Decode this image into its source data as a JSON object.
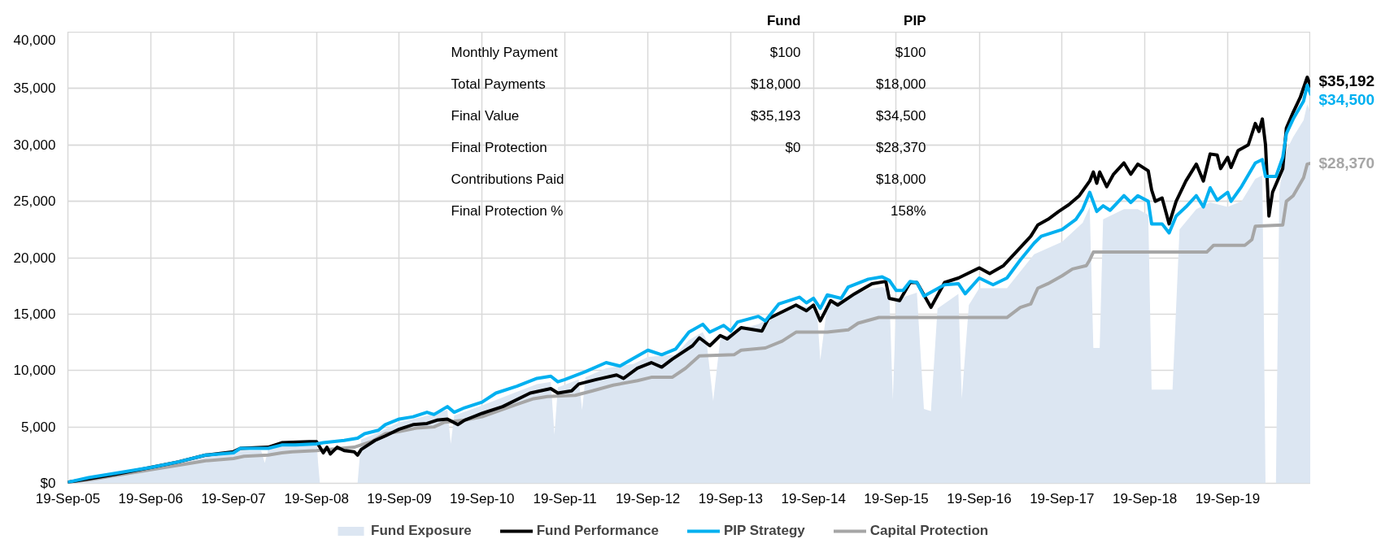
{
  "chart_data": {
    "type": "line",
    "xlim": [
      "2005-09-19",
      "2020-09-19"
    ],
    "xticks": [
      {
        "value": "2005-09-19",
        "label": "19-Sep-05"
      },
      {
        "value": "2006-09-19",
        "label": "19-Sep-06"
      },
      {
        "value": "2007-09-19",
        "label": "19-Sep-07"
      },
      {
        "value": "2008-09-19",
        "label": "19-Sep-08"
      },
      {
        "value": "2009-09-19",
        "label": "19-Sep-09"
      },
      {
        "value": "2010-09-19",
        "label": "19-Sep-10"
      },
      {
        "value": "2011-09-19",
        "label": "19-Sep-11"
      },
      {
        "value": "2012-09-19",
        "label": "19-Sep-12"
      },
      {
        "value": "2013-09-19",
        "label": "19-Sep-13"
      },
      {
        "value": "2014-09-19",
        "label": "19-Sep-14"
      },
      {
        "value": "2015-09-19",
        "label": "19-Sep-15"
      },
      {
        "value": "2016-09-19",
        "label": "19-Sep-16"
      },
      {
        "value": "2017-09-19",
        "label": "19-Sep-17"
      },
      {
        "value": "2018-09-19",
        "label": "19-Sep-18"
      },
      {
        "value": "2019-09-19",
        "label": "19-Sep-19"
      }
    ],
    "ylim": [
      0,
      40000
    ],
    "yticks": [
      {
        "value": 0,
        "label": "$0"
      },
      {
        "value": 5000,
        "label": "5,000"
      },
      {
        "value": 10000,
        "label": "10,000"
      },
      {
        "value": 15000,
        "label": "15,000"
      },
      {
        "value": 20000,
        "label": "20,000"
      },
      {
        "value": 25000,
        "label": "25,000"
      },
      {
        "value": 30000,
        "label": "30,000"
      },
      {
        "value": 35000,
        "label": "35,000"
      },
      {
        "value": 40000,
        "label": "40,000"
      }
    ],
    "grid": true,
    "legend": "bottom",
    "series": [
      {
        "name": "Fund Exposure",
        "type": "area",
        "color": "#dce6f2",
        "x": [
          "2005-09-19",
          "2005-12-19",
          "2006-04-19",
          "2006-09-19",
          "2007-01-19",
          "2007-05-19",
          "2007-09-19",
          "2007-10-19",
          "2008-01-19",
          "2008-02-04",
          "2008-02-19",
          "2008-04-19",
          "2008-09-19",
          "2008-10-04",
          "2009-03-19",
          "2009-04-04",
          "2009-06-19",
          "2009-09-19",
          "2010-01-19",
          "2010-04-19",
          "2010-05-04",
          "2010-05-19",
          "2010-09-19",
          "2011-02-19",
          "2011-05-19",
          "2011-07-19",
          "2011-08-04",
          "2011-08-19",
          "2011-11-19",
          "2011-12-04",
          "2011-12-19",
          "2012-03-19",
          "2012-07-19",
          "2012-09-19",
          "2013-01-19",
          "2013-03-19",
          "2013-05-19",
          "2013-06-04",
          "2013-07-04",
          "2013-08-04",
          "2013-10-19",
          "2014-01-19",
          "2014-04-19",
          "2014-07-19",
          "2014-10-04",
          "2014-10-19",
          "2014-11-19",
          "2015-02-19",
          "2015-05-19",
          "2015-07-19",
          "2015-08-19",
          "2015-09-04",
          "2015-09-19",
          "2015-12-19",
          "2016-01-19",
          "2016-02-19",
          "2016-03-19",
          "2016-06-19",
          "2016-07-04",
          "2016-08-04",
          "2016-09-19",
          "2017-01-19",
          "2017-05-19",
          "2017-09-19",
          "2017-12-19",
          "2018-01-19",
          "2018-02-04",
          "2018-03-04",
          "2018-03-19",
          "2018-06-19",
          "2018-08-19",
          "2018-10-04",
          "2018-10-19",
          "2019-01-19",
          "2019-02-19",
          "2019-05-04",
          "2019-07-04",
          "2019-09-19",
          "2019-11-19",
          "2020-01-19",
          "2020-02-19",
          "2020-03-04",
          "2020-04-19",
          "2020-05-04",
          "2020-06-04",
          "2020-07-04",
          "2020-08-19",
          "2020-09-04",
          "2020-09-19"
        ],
        "values": [
          100,
          400,
          800,
          1300,
          1800,
          2400,
          2600,
          2900,
          2900,
          1800,
          3000,
          3300,
          3400,
          0,
          0,
          3900,
          4500,
          5400,
          6000,
          6500,
          3500,
          6000,
          6900,
          8100,
          8800,
          9000,
          4300,
          8500,
          9200,
          6500,
          9400,
          10200,
          10600,
          11200,
          11400,
          12700,
          13400,
          12700,
          7300,
          12800,
          13600,
          14100,
          15100,
          15700,
          15600,
          10900,
          15800,
          16500,
          17200,
          17400,
          17100,
          7400,
          16300,
          16900,
          6600,
          6400,
          15500,
          16800,
          7500,
          15800,
          17300,
          17300,
          20300,
          21400,
          23100,
          24500,
          12000,
          12000,
          23400,
          24300,
          24300,
          23800,
          8300,
          8300,
          22500,
          24300,
          24900,
          24500,
          25000,
          27000,
          27300,
          0,
          0,
          26000,
          29500,
          30700,
          32200,
          33600,
          32800
        ]
      },
      {
        "name": "Fund Performance",
        "color": "#000000",
        "x": [
          "2005-09-19",
          "2005-12-19",
          "2006-04-19",
          "2006-09-19",
          "2007-01-19",
          "2007-05-19",
          "2007-09-19",
          "2007-10-19",
          "2008-02-19",
          "2008-04-19",
          "2008-08-19",
          "2008-09-19",
          "2008-10-19",
          "2008-11-04",
          "2008-11-19",
          "2008-12-19",
          "2009-01-19",
          "2009-03-04",
          "2009-03-19",
          "2009-04-04",
          "2009-06-04",
          "2009-07-19",
          "2009-09-19",
          "2009-11-19",
          "2010-01-19",
          "2010-03-04",
          "2010-04-19",
          "2010-06-04",
          "2010-07-04",
          "2010-09-19",
          "2010-12-19",
          "2011-04-19",
          "2011-07-19",
          "2011-08-19",
          "2011-10-19",
          "2011-11-19",
          "2012-02-04",
          "2012-05-04",
          "2012-06-04",
          "2012-08-04",
          "2012-10-04",
          "2012-11-19",
          "2013-01-04",
          "2013-04-04",
          "2013-05-04",
          "2013-06-19",
          "2013-08-04",
          "2013-09-04",
          "2013-11-04",
          "2014-02-04",
          "2014-03-04",
          "2014-07-04",
          "2014-08-19",
          "2014-09-19",
          "2014-10-19",
          "2014-12-04",
          "2015-01-04",
          "2015-03-19",
          "2015-06-04",
          "2015-08-04",
          "2015-08-19",
          "2015-10-04",
          "2015-11-19",
          "2015-12-19",
          "2016-02-19",
          "2016-04-19",
          "2016-06-19",
          "2016-09-19",
          "2016-11-04",
          "2017-01-04",
          "2017-02-19",
          "2017-05-04",
          "2017-06-04",
          "2017-07-19",
          "2017-09-04",
          "2017-10-19",
          "2017-12-04",
          "2018-01-19",
          "2018-02-04",
          "2018-02-19",
          "2018-03-04",
          "2018-04-04",
          "2018-05-04",
          "2018-06-19",
          "2018-07-19",
          "2018-08-19",
          "2018-10-04",
          "2018-10-19",
          "2018-11-04",
          "2018-12-04",
          "2019-01-04",
          "2019-02-04",
          "2019-03-19",
          "2019-05-04",
          "2019-06-04",
          "2019-07-04",
          "2019-08-04",
          "2019-08-19",
          "2019-09-19",
          "2019-10-04",
          "2019-11-04",
          "2019-12-19",
          "2020-01-19",
          "2020-02-04",
          "2020-02-19",
          "2020-03-04",
          "2020-03-19",
          "2020-04-04",
          "2020-05-19",
          "2020-06-04",
          "2020-07-04",
          "2020-08-04",
          "2020-09-04",
          "2020-09-19"
        ],
        "values": [
          100,
          400,
          800,
          1400,
          1900,
          2500,
          2800,
          3100,
          3200,
          3600,
          3700,
          3700,
          2700,
          3200,
          2600,
          3200,
          2900,
          2800,
          2500,
          3000,
          3800,
          4200,
          4800,
          5200,
          5300,
          5600,
          5700,
          5200,
          5600,
          6200,
          6800,
          8000,
          8400,
          8000,
          8200,
          8800,
          9200,
          9600,
          9300,
          10200,
          10700,
          10300,
          11000,
          12200,
          12900,
          12200,
          13100,
          12800,
          13800,
          13500,
          14600,
          15800,
          15300,
          15800,
          14400,
          16200,
          15800,
          16800,
          17700,
          17900,
          16400,
          16200,
          17800,
          17800,
          15600,
          17800,
          18200,
          19100,
          18600,
          19300,
          20300,
          21900,
          22900,
          23400,
          24100,
          24700,
          25500,
          26800,
          27600,
          26600,
          27600,
          26300,
          27400,
          28400,
          27400,
          28300,
          27700,
          26000,
          25000,
          25300,
          23000,
          25000,
          26800,
          28300,
          26800,
          29200,
          29100,
          27900,
          28900,
          28000,
          29500,
          30000,
          31900,
          31200,
          32300,
          30000,
          23700,
          25800,
          27900,
          31500,
          32900,
          34200,
          36000,
          35192
        ],
        "value_labels": [
          null,
          null,
          null,
          null,
          null,
          null,
          null,
          null,
          null,
          null,
          null,
          null,
          null,
          null,
          null,
          null,
          null,
          null,
          null,
          null,
          null,
          null,
          null,
          null,
          null,
          null,
          null,
          null,
          null,
          null,
          null,
          null,
          null,
          null,
          null,
          null,
          null,
          null,
          null,
          null,
          null,
          null,
          null,
          null,
          null,
          null,
          null,
          null,
          null,
          null,
          null,
          null,
          null,
          null,
          null,
          null,
          null,
          null,
          null,
          null,
          null,
          null,
          null,
          null,
          null,
          null,
          null,
          null,
          null,
          null,
          null,
          null,
          null,
          null,
          null,
          null,
          null,
          null,
          null,
          null,
          null,
          null,
          null,
          null,
          null,
          null,
          null,
          null,
          null,
          null,
          null,
          null,
          null,
          null,
          null,
          null,
          null,
          null,
          null,
          null,
          null,
          null,
          null,
          null,
          null,
          null,
          null,
          null,
          null,
          null,
          null,
          null,
          null,
          "$35,192"
        ]
      },
      {
        "name": "PIP Strategy",
        "color": "#00b0f0",
        "x": [
          "2005-09-19",
          "2005-12-19",
          "2006-04-19",
          "2006-09-19",
          "2007-01-19",
          "2007-05-19",
          "2007-09-19",
          "2007-10-19",
          "2008-02-19",
          "2008-04-19",
          "2008-06-19",
          "2008-09-19",
          "2008-10-19",
          "2009-01-19",
          "2009-03-19",
          "2009-04-19",
          "2009-06-19",
          "2009-07-19",
          "2009-09-19",
          "2009-11-19",
          "2010-01-19",
          "2010-02-19",
          "2010-04-19",
          "2010-05-19",
          "2010-07-04",
          "2010-09-19",
          "2010-11-19",
          "2011-02-19",
          "2011-05-19",
          "2011-07-19",
          "2011-08-19",
          "2011-09-19",
          "2011-12-19",
          "2012-03-19",
          "2012-05-19",
          "2012-07-19",
          "2012-09-19",
          "2012-11-19",
          "2013-01-19",
          "2013-03-19",
          "2013-05-19",
          "2013-06-19",
          "2013-08-19",
          "2013-09-19",
          "2013-10-19",
          "2014-01-19",
          "2014-02-19",
          "2014-04-19",
          "2014-07-19",
          "2014-08-19",
          "2014-09-19",
          "2014-10-19",
          "2014-11-19",
          "2015-01-19",
          "2015-02-19",
          "2015-05-19",
          "2015-07-19",
          "2015-08-19",
          "2015-09-19",
          "2015-10-19",
          "2015-11-19",
          "2015-12-19",
          "2016-01-19",
          "2016-04-19",
          "2016-06-19",
          "2016-07-19",
          "2016-09-19",
          "2016-11-19",
          "2017-01-19",
          "2017-03-19",
          "2017-05-19",
          "2017-06-19",
          "2017-09-19",
          "2017-11-19",
          "2017-12-19",
          "2018-01-19",
          "2018-02-19",
          "2018-03-19",
          "2018-04-19",
          "2018-06-19",
          "2018-07-19",
          "2018-08-19",
          "2018-10-04",
          "2018-10-19",
          "2018-12-04",
          "2019-01-04",
          "2019-02-04",
          "2019-03-19",
          "2019-05-04",
          "2019-06-04",
          "2019-07-04",
          "2019-08-04",
          "2019-09-19",
          "2019-10-04",
          "2019-11-19",
          "2020-01-19",
          "2020-02-19",
          "2020-03-04",
          "2020-04-19",
          "2020-05-19",
          "2020-06-04",
          "2020-07-04",
          "2020-08-19",
          "2020-09-04",
          "2020-09-19"
        ],
        "values": [
          100,
          500,
          900,
          1400,
          1900,
          2500,
          2700,
          3100,
          3100,
          3400,
          3400,
          3500,
          3600,
          3800,
          4000,
          4400,
          4700,
          5200,
          5700,
          5900,
          6300,
          6100,
          6800,
          6300,
          6700,
          7200,
          8000,
          8600,
          9300,
          9500,
          9000,
          9200,
          9900,
          10700,
          10400,
          11100,
          11800,
          11400,
          11900,
          13400,
          14100,
          13400,
          14000,
          13500,
          14300,
          14800,
          14400,
          15900,
          16500,
          16000,
          16400,
          15500,
          16700,
          16400,
          17400,
          18100,
          18300,
          18000,
          17100,
          17100,
          17900,
          17800,
          16600,
          17600,
          17700,
          16800,
          18200,
          17600,
          18200,
          19800,
          21300,
          21900,
          22500,
          23400,
          24300,
          25800,
          24100,
          24600,
          24200,
          25500,
          24900,
          25500,
          25000,
          23000,
          23000,
          22200,
          23700,
          24500,
          25500,
          24500,
          26200,
          25100,
          25800,
          25000,
          26300,
          28400,
          28700,
          27200,
          27200,
          28900,
          31000,
          32300,
          33900,
          35300,
          34500
        ],
        "value_labels": [
          null,
          null,
          null,
          null,
          null,
          null,
          null,
          null,
          null,
          null,
          null,
          null,
          null,
          null,
          null,
          null,
          null,
          null,
          null,
          null,
          null,
          null,
          null,
          null,
          null,
          null,
          null,
          null,
          null,
          null,
          null,
          null,
          null,
          null,
          null,
          null,
          null,
          null,
          null,
          null,
          null,
          null,
          null,
          null,
          null,
          null,
          null,
          null,
          null,
          null,
          null,
          null,
          null,
          null,
          null,
          null,
          null,
          null,
          null,
          null,
          null,
          null,
          null,
          null,
          null,
          null,
          null,
          null,
          null,
          null,
          null,
          null,
          null,
          null,
          null,
          null,
          null,
          null,
          null,
          null,
          null,
          null,
          null,
          null,
          null,
          null,
          null,
          null,
          null,
          null,
          null,
          null,
          null,
          null,
          null,
          null,
          null,
          null,
          null,
          null,
          null,
          null,
          null,
          null,
          "$34,500"
        ]
      },
      {
        "name": "Capital Protection",
        "color": "#a6a6a6",
        "x": [
          "2005-09-19",
          "2005-12-19",
          "2006-09-19",
          "2007-01-19",
          "2007-05-19",
          "2007-09-19",
          "2007-11-04",
          "2008-02-19",
          "2008-04-19",
          "2008-06-04",
          "2008-09-19",
          "2009-01-04",
          "2009-03-04",
          "2009-05-19",
          "2009-07-19",
          "2009-09-19",
          "2009-12-04",
          "2010-02-19",
          "2010-04-04",
          "2010-07-04",
          "2010-09-19",
          "2011-02-19",
          "2011-05-04",
          "2011-07-04",
          "2011-11-04",
          "2012-01-19",
          "2012-04-19",
          "2012-08-04",
          "2012-10-04",
          "2013-01-04",
          "2013-03-04",
          "2013-05-04",
          "2013-10-04",
          "2013-11-04",
          "2014-02-19",
          "2014-05-04",
          "2014-07-04",
          "2014-11-19",
          "2015-02-19",
          "2015-04-04",
          "2015-07-04",
          "2017-01-19",
          "2017-03-19",
          "2017-05-04",
          "2017-06-04",
          "2017-07-19",
          "2017-09-19",
          "2017-11-04",
          "2018-01-04",
          "2018-01-19",
          "2018-02-04",
          "2019-06-19",
          "2019-07-19",
          "2019-12-04",
          "2020-01-04",
          "2020-01-19",
          "2020-05-19",
          "2020-06-04",
          "2020-07-04",
          "2020-08-19",
          "2020-09-04",
          "2020-09-19"
        ],
        "values": [
          100,
          300,
          1200,
          1600,
          2000,
          2200,
          2400,
          2500,
          2700,
          2800,
          2900,
          3100,
          3200,
          3700,
          4400,
          4600,
          4900,
          5000,
          5400,
          5600,
          5900,
          7000,
          7500,
          7700,
          7800,
          8200,
          8700,
          9100,
          9400,
          9400,
          10200,
          11300,
          11400,
          11800,
          12000,
          12600,
          13400,
          13400,
          13600,
          14200,
          14700,
          14700,
          15600,
          15900,
          17300,
          17700,
          18400,
          19000,
          19300,
          19800,
          20500,
          20500,
          21100,
          21100,
          21600,
          22800,
          22900,
          25000,
          25500,
          27100,
          28300,
          28370
        ],
        "value_labels": [
          null,
          null,
          null,
          null,
          null,
          null,
          null,
          null,
          null,
          null,
          null,
          null,
          null,
          null,
          null,
          null,
          null,
          null,
          null,
          null,
          null,
          null,
          null,
          null,
          null,
          null,
          null,
          null,
          null,
          null,
          null,
          null,
          null,
          null,
          null,
          null,
          null,
          null,
          null,
          null,
          null,
          null,
          null,
          null,
          null,
          null,
          null,
          null,
          null,
          null,
          null,
          null,
          null,
          null,
          null,
          null,
          null,
          null,
          null,
          null,
          null,
          "$28,370"
        ]
      }
    ],
    "annotations": [
      "Fund",
      "PIP",
      "Monthly Payment",
      "$100",
      "$100",
      "Total Payments",
      "$18,000",
      "$18,000",
      "Final Value",
      "$35,193",
      "$34,500",
      "Final Protection",
      "$0",
      "$28,370",
      "Contributions Paid",
      "$18,000",
      "Final Protection %",
      "158%"
    ]
  }
}
